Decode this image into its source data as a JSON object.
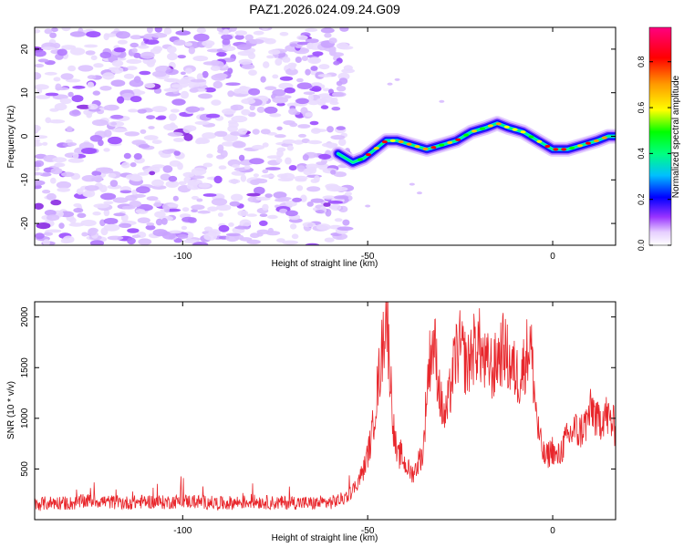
{
  "figure": {
    "title": "PAZ1.2026.024.09.24.G09"
  },
  "chart_data": [
    {
      "type": "heatmap",
      "title": "PAZ1.2026.024.09.24.G09",
      "xlabel": "Height of straight line (km)",
      "ylabel": "Frequency (Hz)",
      "xlim": [
        -140,
        17
      ],
      "ylim": [
        -25,
        25
      ],
      "x_ticks": [
        -100,
        -50,
        0
      ],
      "y_ticks": [
        -20,
        -10,
        0,
        10,
        20
      ],
      "noise_region": {
        "x_range": [
          -140,
          -57
        ],
        "y_range": [
          -25,
          25
        ]
      },
      "ridge": {
        "x": [
          -58,
          -54,
          -51,
          -48,
          -45,
          -42,
          -38,
          -34,
          -30,
          -26,
          -22,
          -18,
          -15,
          -12,
          -8,
          -4,
          0,
          4,
          8,
          12,
          15,
          17
        ],
        "y": [
          -4,
          -6,
          -5,
          -3,
          -1,
          -1,
          -2,
          -3,
          -2,
          -1,
          1,
          2,
          3,
          2,
          1,
          -1,
          -3,
          -3,
          -2,
          -1,
          0,
          0
        ]
      },
      "colorbar": {
        "label": "Normalized spectral amplitude",
        "range": [
          0,
          0.95
        ],
        "ticks": [
          0.0,
          0.2,
          0.4,
          0.6,
          0.8
        ],
        "tick_labels": [
          "0.0",
          "0.2",
          "0.4",
          "0.6",
          "0.8"
        ],
        "colormap": [
          "#ffffff",
          "#d8b8ff",
          "#8a2be2",
          "#0000ff",
          "#00e5ff",
          "#00ff00",
          "#ffff00",
          "#ff8000",
          "#ff0000",
          "#ff00a0"
        ]
      }
    },
    {
      "type": "line",
      "xlabel": "Height of straight line (km)",
      "ylabel": "SNR (10 * v/v)",
      "xlim": [
        -140,
        17
      ],
      "ylim": [
        0,
        2150
      ],
      "x_ticks": [
        -100,
        -50,
        0
      ],
      "y_ticks": [
        500,
        1000,
        1500,
        2000
      ],
      "series": [
        {
          "name": "SNR",
          "color": "#e8262b",
          "x": [
            -140,
            -135,
            -130,
            -125,
            -120,
            -115,
            -110,
            -105,
            -100,
            -95,
            -90,
            -85,
            -80,
            -75,
            -70,
            -65,
            -60,
            -57,
            -55,
            -53,
            -51,
            -49,
            -48,
            -47,
            -46,
            -45,
            -44,
            -43,
            -42,
            -41,
            -40,
            -39,
            -38,
            -37,
            -36,
            -35,
            -34,
            -33,
            -32,
            -31,
            -30,
            -29,
            -28,
            -27,
            -26,
            -25,
            -24,
            -23,
            -22,
            -21,
            -20,
            -19,
            -18,
            -17,
            -16,
            -15,
            -14,
            -13,
            -12,
            -11,
            -10,
            -9,
            -8,
            -7,
            -6,
            -5,
            -4,
            -3,
            -2,
            -1,
            0,
            1,
            2,
            3,
            4,
            5,
            6,
            7,
            8,
            9,
            10,
            11,
            12,
            13,
            14,
            15,
            16,
            17
          ],
          "values": [
            150,
            170,
            160,
            190,
            175,
            165,
            180,
            170,
            185,
            175,
            160,
            170,
            180,
            165,
            170,
            160,
            170,
            200,
            250,
            350,
            500,
            800,
            1100,
            1400,
            1700,
            2100,
            1500,
            900,
            600,
            650,
            550,
            500,
            450,
            500,
            600,
            650,
            1300,
            1650,
            1750,
            1400,
            1100,
            1000,
            1200,
            1450,
            1650,
            1700,
            1600,
            1500,
            1650,
            1700,
            1750,
            1600,
            1500,
            1550,
            1450,
            1600,
            1650,
            1700,
            1550,
            1500,
            1450,
            1400,
            1500,
            1650,
            1750,
            1300,
            900,
            700,
            600,
            650,
            700,
            600,
            650,
            750,
            800,
            850,
            900,
            850,
            900,
            950,
            1050,
            1100,
            950,
            1000,
            1050,
            1000,
            950,
            900
          ]
        }
      ]
    }
  ]
}
